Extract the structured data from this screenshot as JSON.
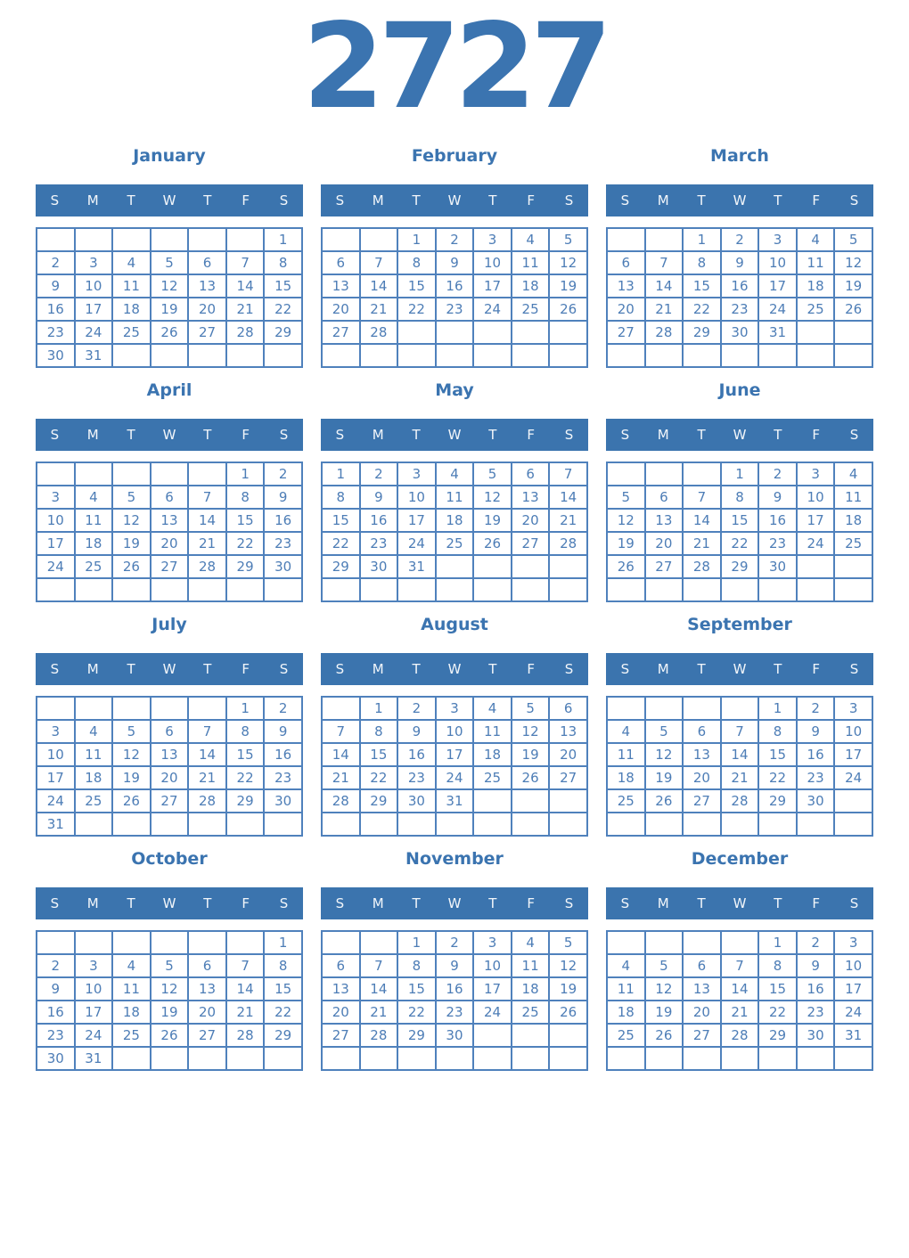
{
  "year": "2727",
  "weekday_labels": [
    "S",
    "M",
    "T",
    "W",
    "T",
    "F",
    "S"
  ],
  "colors": {
    "title": "#3b74b0",
    "month_header_background": "#3b74ae",
    "month_header_text": "#f2f6fa",
    "day_number": "#4d7db6",
    "grid_border": "#4f81bc",
    "page_background": "#ffffff"
  },
  "months": [
    {
      "name": "January",
      "weeks": [
        [
          "",
          "",
          "",
          "",
          "",
          "",
          "1"
        ],
        [
          "2",
          "3",
          "4",
          "5",
          "6",
          "7",
          "8"
        ],
        [
          "9",
          "10",
          "11",
          "12",
          "13",
          "14",
          "15"
        ],
        [
          "16",
          "17",
          "18",
          "19",
          "20",
          "21",
          "22"
        ],
        [
          "23",
          "24",
          "25",
          "26",
          "27",
          "28",
          "29"
        ],
        [
          "30",
          "31",
          "",
          "",
          "",
          "",
          ""
        ]
      ]
    },
    {
      "name": "February",
      "weeks": [
        [
          "",
          "",
          "1",
          "2",
          "3",
          "4",
          "5"
        ],
        [
          "6",
          "7",
          "8",
          "9",
          "10",
          "11",
          "12"
        ],
        [
          "13",
          "14",
          "15",
          "16",
          "17",
          "18",
          "19"
        ],
        [
          "20",
          "21",
          "22",
          "23",
          "24",
          "25",
          "26"
        ],
        [
          "27",
          "28",
          "",
          "",
          "",
          "",
          ""
        ],
        [
          "",
          "",
          "",
          "",
          "",
          "",
          ""
        ]
      ]
    },
    {
      "name": "March",
      "weeks": [
        [
          "",
          "",
          "1",
          "2",
          "3",
          "4",
          "5"
        ],
        [
          "6",
          "7",
          "8",
          "9",
          "10",
          "11",
          "12"
        ],
        [
          "13",
          "14",
          "15",
          "16",
          "17",
          "18",
          "19"
        ],
        [
          "20",
          "21",
          "22",
          "23",
          "24",
          "25",
          "26"
        ],
        [
          "27",
          "28",
          "29",
          "30",
          "31",
          "",
          ""
        ],
        [
          "",
          "",
          "",
          "",
          "",
          "",
          ""
        ]
      ]
    },
    {
      "name": "April",
      "weeks": [
        [
          "",
          "",
          "",
          "",
          "",
          "1",
          "2"
        ],
        [
          "3",
          "4",
          "5",
          "6",
          "7",
          "8",
          "9"
        ],
        [
          "10",
          "11",
          "12",
          "13",
          "14",
          "15",
          "16"
        ],
        [
          "17",
          "18",
          "19",
          "20",
          "21",
          "22",
          "23"
        ],
        [
          "24",
          "25",
          "26",
          "27",
          "28",
          "29",
          "30"
        ],
        [
          "",
          "",
          "",
          "",
          "",
          "",
          ""
        ]
      ]
    },
    {
      "name": "May",
      "weeks": [
        [
          "1",
          "2",
          "3",
          "4",
          "5",
          "6",
          "7"
        ],
        [
          "8",
          "9",
          "10",
          "11",
          "12",
          "13",
          "14"
        ],
        [
          "15",
          "16",
          "17",
          "18",
          "19",
          "20",
          "21"
        ],
        [
          "22",
          "23",
          "24",
          "25",
          "26",
          "27",
          "28"
        ],
        [
          "29",
          "30",
          "31",
          "",
          "",
          "",
          ""
        ],
        [
          "",
          "",
          "",
          "",
          "",
          "",
          ""
        ]
      ]
    },
    {
      "name": "June",
      "weeks": [
        [
          "",
          "",
          "",
          "1",
          "2",
          "3",
          "4"
        ],
        [
          "5",
          "6",
          "7",
          "8",
          "9",
          "10",
          "11"
        ],
        [
          "12",
          "13",
          "14",
          "15",
          "16",
          "17",
          "18"
        ],
        [
          "19",
          "20",
          "21",
          "22",
          "23",
          "24",
          "25"
        ],
        [
          "26",
          "27",
          "28",
          "29",
          "30",
          "",
          ""
        ],
        [
          "",
          "",
          "",
          "",
          "",
          "",
          ""
        ]
      ]
    },
    {
      "name": "July",
      "weeks": [
        [
          "",
          "",
          "",
          "",
          "",
          "1",
          "2"
        ],
        [
          "3",
          "4",
          "5",
          "6",
          "7",
          "8",
          "9"
        ],
        [
          "10",
          "11",
          "12",
          "13",
          "14",
          "15",
          "16"
        ],
        [
          "17",
          "18",
          "19",
          "20",
          "21",
          "22",
          "23"
        ],
        [
          "24",
          "25",
          "26",
          "27",
          "28",
          "29",
          "30"
        ],
        [
          "31",
          "",
          "",
          "",
          "",
          "",
          ""
        ]
      ]
    },
    {
      "name": "August",
      "weeks": [
        [
          "",
          "1",
          "2",
          "3",
          "4",
          "5",
          "6"
        ],
        [
          "7",
          "8",
          "9",
          "10",
          "11",
          "12",
          "13"
        ],
        [
          "14",
          "15",
          "16",
          "17",
          "18",
          "19",
          "20"
        ],
        [
          "21",
          "22",
          "23",
          "24",
          "25",
          "26",
          "27"
        ],
        [
          "28",
          "29",
          "30",
          "31",
          "",
          "",
          ""
        ],
        [
          "",
          "",
          "",
          "",
          "",
          "",
          ""
        ]
      ]
    },
    {
      "name": "September",
      "weeks": [
        [
          "",
          "",
          "",
          "",
          "1",
          "2",
          "3"
        ],
        [
          "4",
          "5",
          "6",
          "7",
          "8",
          "9",
          "10"
        ],
        [
          "11",
          "12",
          "13",
          "14",
          "15",
          "16",
          "17"
        ],
        [
          "18",
          "19",
          "20",
          "21",
          "22",
          "23",
          "24"
        ],
        [
          "25",
          "26",
          "27",
          "28",
          "29",
          "30",
          ""
        ],
        [
          "",
          "",
          "",
          "",
          "",
          "",
          ""
        ]
      ]
    },
    {
      "name": "October",
      "weeks": [
        [
          "",
          "",
          "",
          "",
          "",
          "",
          "1"
        ],
        [
          "2",
          "3",
          "4",
          "5",
          "6",
          "7",
          "8"
        ],
        [
          "9",
          "10",
          "11",
          "12",
          "13",
          "14",
          "15"
        ],
        [
          "16",
          "17",
          "18",
          "19",
          "20",
          "21",
          "22"
        ],
        [
          "23",
          "24",
          "25",
          "26",
          "27",
          "28",
          "29"
        ],
        [
          "30",
          "31",
          "",
          "",
          "",
          "",
          ""
        ]
      ]
    },
    {
      "name": "November",
      "weeks": [
        [
          "",
          "",
          "1",
          "2",
          "3",
          "4",
          "5"
        ],
        [
          "6",
          "7",
          "8",
          "9",
          "10",
          "11",
          "12"
        ],
        [
          "13",
          "14",
          "15",
          "16",
          "17",
          "18",
          "19"
        ],
        [
          "20",
          "21",
          "22",
          "23",
          "24",
          "25",
          "26"
        ],
        [
          "27",
          "28",
          "29",
          "30",
          "",
          "",
          ""
        ],
        [
          "",
          "",
          "",
          "",
          "",
          "",
          ""
        ]
      ]
    },
    {
      "name": "December",
      "weeks": [
        [
          "",
          "",
          "",
          "",
          "1",
          "2",
          "3"
        ],
        [
          "4",
          "5",
          "6",
          "7",
          "8",
          "9",
          "10"
        ],
        [
          "11",
          "12",
          "13",
          "14",
          "15",
          "16",
          "17"
        ],
        [
          "18",
          "19",
          "20",
          "21",
          "22",
          "23",
          "24"
        ],
        [
          "25",
          "26",
          "27",
          "28",
          "29",
          "30",
          "31"
        ],
        [
          "",
          "",
          "",
          "",
          "",
          "",
          ""
        ]
      ]
    }
  ]
}
